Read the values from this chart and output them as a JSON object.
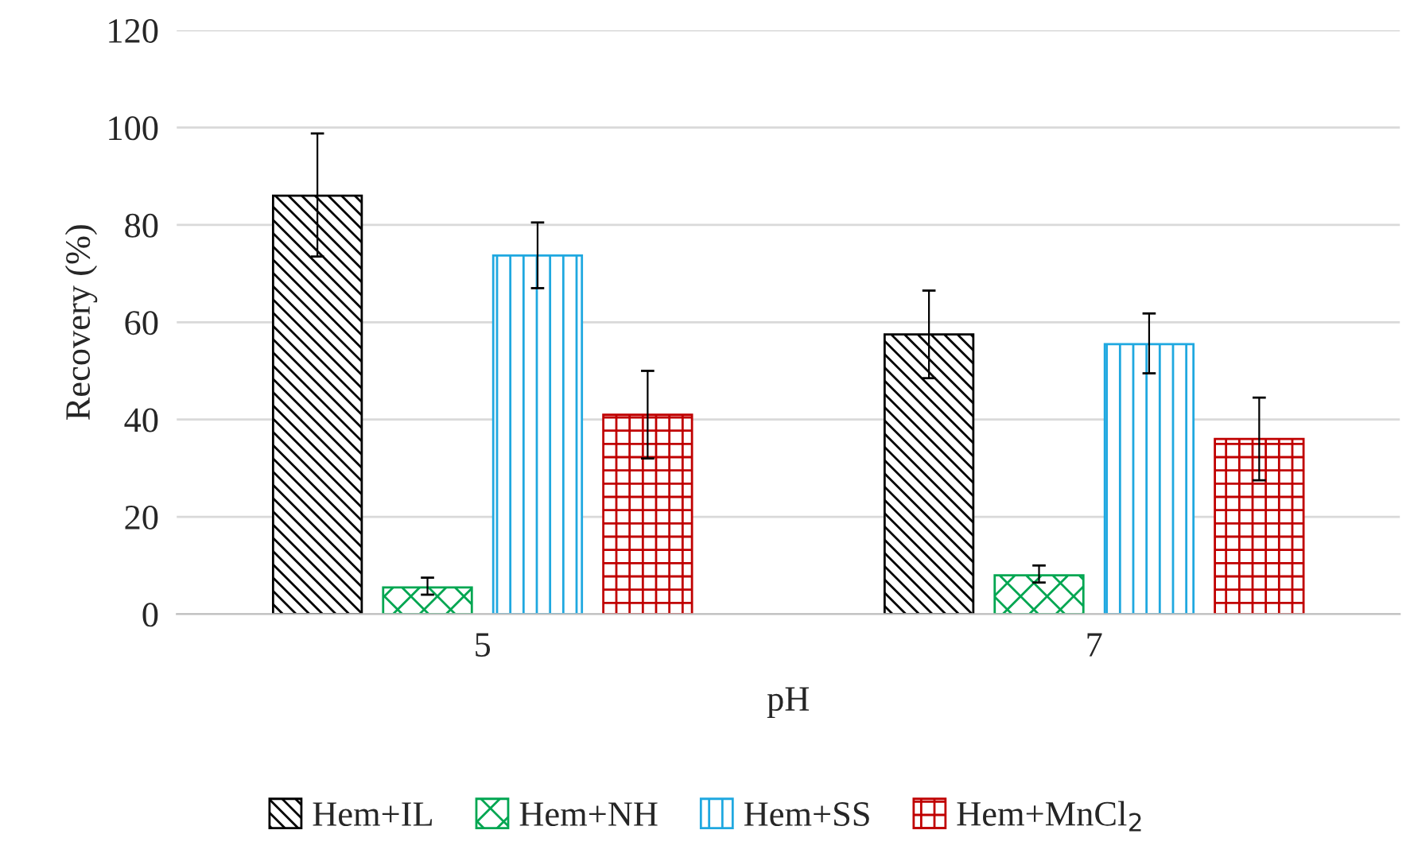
{
  "chart_data": {
    "type": "bar",
    "xlabel": "pH",
    "ylabel": "Recovery (%)",
    "categories": [
      "5",
      "7"
    ],
    "series": [
      {
        "name": "Hem+IL",
        "color": "#000000",
        "values": [
          86,
          57.5
        ],
        "errors": [
          [
            73.5,
            98.8
          ],
          [
            48.5,
            66.5
          ]
        ]
      },
      {
        "name": "Hem+NH",
        "color": "#00a651",
        "values": [
          5.5,
          8
        ],
        "errors": [
          [
            4,
            7.5
          ],
          [
            6.5,
            10
          ]
        ]
      },
      {
        "name": "Hem+SS",
        "color": "#1fa8e0",
        "values": [
          73.7,
          55.5
        ],
        "errors": [
          [
            67,
            80.5
          ],
          [
            49.5,
            61.8
          ]
        ]
      },
      {
        "name": "Hem+MnCl$_{2}$",
        "color": "#c00000",
        "values": [
          41,
          36
        ],
        "errors": [
          [
            32,
            50
          ],
          [
            27.5,
            44.5
          ]
        ]
      }
    ],
    "ylim": [
      0,
      120
    ],
    "yticks": [
      0,
      20,
      40,
      60,
      80,
      100,
      120
    ],
    "grid": "y",
    "legend": "bottom"
  }
}
